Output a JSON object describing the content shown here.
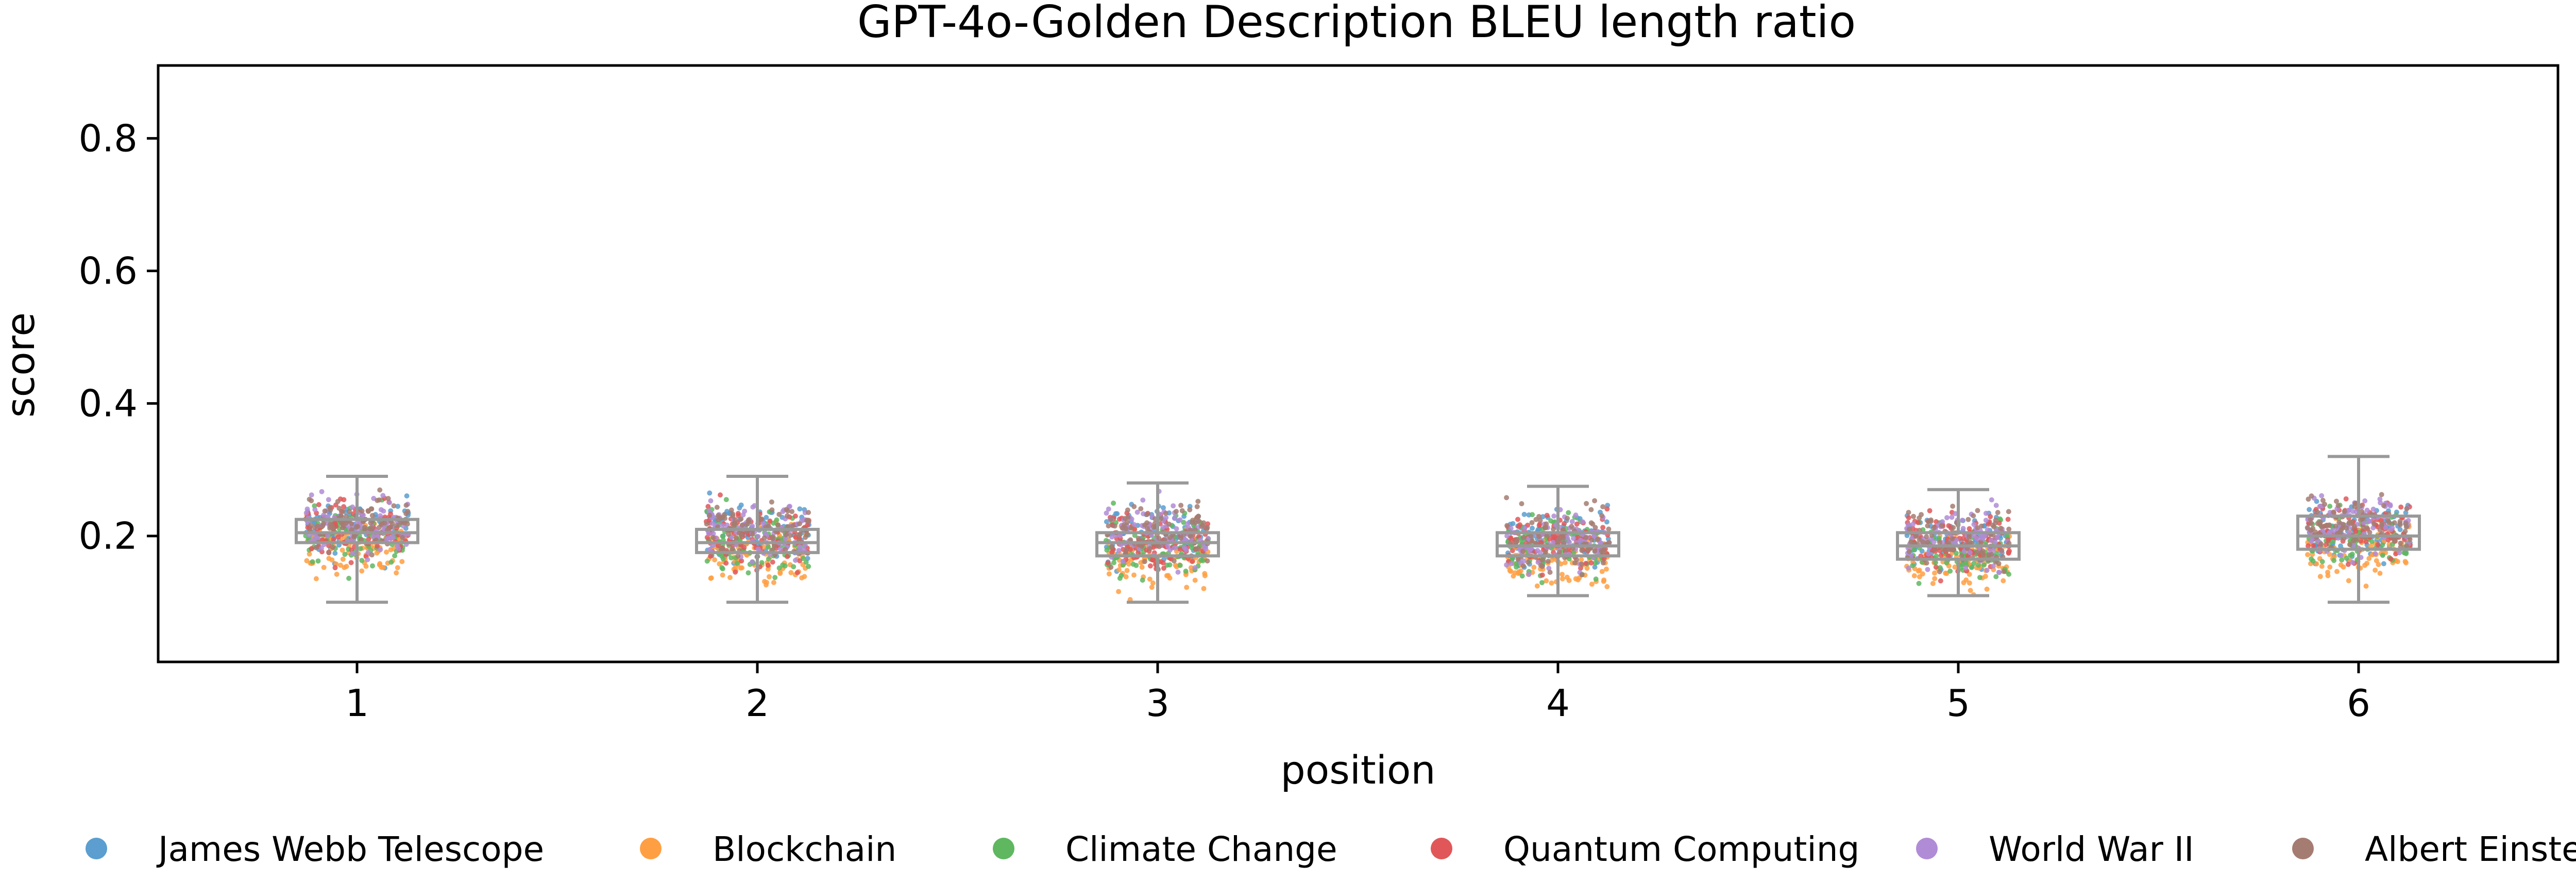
{
  "chart_data": {
    "type": "strip-box",
    "title": "GPT-4o-Golden Description BLEU length ratio",
    "xlabel": "position",
    "ylabel": "score",
    "categories": [
      "1",
      "2",
      "3",
      "4",
      "5",
      "6"
    ],
    "ylim": [
      0.01,
      0.91
    ],
    "yticks": [
      0.2,
      0.4,
      0.6,
      0.8
    ],
    "ytick_labels": [
      "0.2",
      "0.4",
      "0.6",
      "0.8"
    ],
    "grid": false,
    "legend_position": "bottom",
    "series": [
      {
        "name": "James Webb Telescope",
        "color": "#5b9ecf",
        "mean": [
          0.21,
          0.205,
          0.2,
          0.195,
          0.19,
          0.205
        ]
      },
      {
        "name": "Blockchain",
        "color": "#ff9f43",
        "mean": [
          0.185,
          0.17,
          0.165,
          0.16,
          0.165,
          0.18
        ]
      },
      {
        "name": "Climate Change",
        "color": "#5fb760",
        "mean": [
          0.2,
          0.19,
          0.185,
          0.185,
          0.18,
          0.195
        ]
      },
      {
        "name": "Quantum Computing",
        "color": "#e15759",
        "mean": [
          0.21,
          0.2,
          0.195,
          0.19,
          0.19,
          0.21
        ]
      },
      {
        "name": "World War II",
        "color": "#b08cd6",
        "mean": [
          0.215,
          0.205,
          0.2,
          0.195,
          0.195,
          0.215
        ]
      },
      {
        "name": "Albert Einstein",
        "color": "#a57c72",
        "mean": [
          0.215,
          0.21,
          0.205,
          0.195,
          0.195,
          0.22
        ]
      }
    ],
    "boxes": [
      {
        "position": "1",
        "whisker_low": 0.1,
        "q1": 0.19,
        "median": 0.205,
        "q3": 0.225,
        "whisker_high": 0.29
      },
      {
        "position": "2",
        "whisker_low": 0.1,
        "q1": 0.175,
        "median": 0.19,
        "q3": 0.21,
        "whisker_high": 0.29
      },
      {
        "position": "3",
        "whisker_low": 0.1,
        "q1": 0.17,
        "median": 0.19,
        "q3": 0.205,
        "whisker_high": 0.28
      },
      {
        "position": "4",
        "whisker_low": 0.11,
        "q1": 0.17,
        "median": 0.185,
        "q3": 0.205,
        "whisker_high": 0.275
      },
      {
        "position": "5",
        "whisker_low": 0.11,
        "q1": 0.165,
        "median": 0.185,
        "q3": 0.205,
        "whisker_high": 0.27
      },
      {
        "position": "6",
        "whisker_low": 0.1,
        "q1": 0.18,
        "median": 0.2,
        "q3": 0.23,
        "whisker_high": 0.32
      }
    ],
    "box_color": "#999999"
  }
}
